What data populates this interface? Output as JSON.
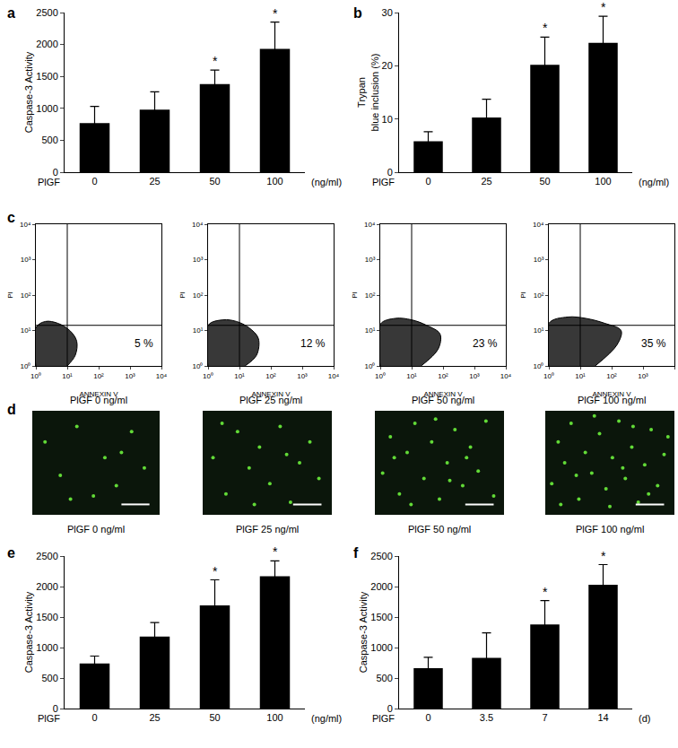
{
  "chart_data": [
    {
      "panel": "a",
      "type": "bar",
      "categories": [
        "0",
        "25",
        "50",
        "100"
      ],
      "values": [
        770,
        980,
        1380,
        1930
      ],
      "errors": [
        260,
        280,
        220,
        420
      ],
      "x_label": "PlGF",
      "x_unit": "(ng/ml)",
      "y_label": "Caspase-3 Activity",
      "ylim": [
        0,
        2500
      ],
      "yticks": [
        0,
        500,
        1000,
        1500,
        2000,
        2500
      ],
      "color": "#000000",
      "grid": false,
      "annotations": [
        {
          "category": "50",
          "text": "*"
        },
        {
          "category": "100",
          "text": "*"
        }
      ]
    },
    {
      "panel": "b",
      "type": "bar",
      "categories": [
        "0",
        "25",
        "50",
        "100"
      ],
      "values": [
        5.8,
        10.3,
        20.2,
        24.3
      ],
      "errors": [
        1.8,
        3.4,
        5.2,
        5.0
      ],
      "x_label": "PlGF",
      "x_unit": "(ng/ml)",
      "y_label": [
        "Trypan",
        "blue inclusion (%)"
      ],
      "ylim": [
        0,
        30
      ],
      "yticks": [
        0,
        10,
        20,
        30
      ],
      "color": "#000000",
      "grid": false,
      "annotations": [
        {
          "category": "50",
          "text": "*"
        },
        {
          "category": "100",
          "text": "*"
        }
      ]
    },
    {
      "panel": "c",
      "type": "scatter",
      "log": true,
      "x_label": "ANNEXIN V",
      "y_label": "PI",
      "xlim": [
        1,
        10000
      ],
      "ylim": [
        1,
        10000
      ],
      "xticks": [
        {
          "value": 1,
          "label": "10⁰"
        },
        {
          "value": 10,
          "label": "10¹"
        },
        {
          "value": 100,
          "label": "10²"
        },
        {
          "value": 1000,
          "label": "10³"
        },
        {
          "value": 10000,
          "label": "10⁴"
        }
      ],
      "yticks": [
        {
          "value": 1,
          "label": "10⁰"
        },
        {
          "value": 10,
          "label": "10¹"
        },
        {
          "value": 100,
          "label": "10²"
        },
        {
          "value": 1000,
          "label": "10³"
        },
        {
          "value": 10000,
          "label": "10⁴"
        }
      ],
      "gates": {
        "x": 10,
        "y": 14
      },
      "quadrant_label": "5 %",
      "caption": "PlGF 0 ng/ml",
      "color": "#000000",
      "cloud": {
        "x": [
          1,
          1,
          2,
          5,
          12,
          20,
          18,
          10
        ],
        "y": [
          1,
          12,
          18,
          16,
          10,
          5,
          2,
          1
        ]
      }
    },
    {
      "type": "scatter",
      "log": true,
      "x_label": "ANNEXIN V",
      "y_label": "PI",
      "xlim": [
        1,
        10000
      ],
      "ylim": [
        1,
        10000
      ],
      "xticks": [
        {
          "value": 1,
          "label": "10⁰"
        },
        {
          "value": 10,
          "label": "10¹"
        },
        {
          "value": 100,
          "label": "10²"
        },
        {
          "value": 1000,
          "label": "10³"
        },
        {
          "value": 10000,
          "label": "10⁴"
        }
      ],
      "yticks": [
        {
          "value": 1,
          "label": "10⁰"
        },
        {
          "value": 10,
          "label": "10¹"
        },
        {
          "value": 100,
          "label": "10²"
        },
        {
          "value": 1000,
          "label": "10³"
        },
        {
          "value": 10000,
          "label": "10⁴"
        }
      ],
      "gates": {
        "x": 10,
        "y": 14
      },
      "quadrant_label": "12 %",
      "caption": "PlGF 25 ng/ml",
      "color": "#000000",
      "cloud": {
        "x": [
          1,
          1,
          3,
          8,
          20,
          40,
          35,
          15
        ],
        "y": [
          1,
          14,
          20,
          18,
          12,
          6,
          2,
          1
        ]
      }
    },
    {
      "type": "scatter",
      "log": true,
      "x_label": "ANNEXIN V",
      "y_label": "PI",
      "xlim": [
        1,
        10000
      ],
      "ylim": [
        1,
        10000
      ],
      "xticks": [
        {
          "value": 1,
          "label": "10⁰"
        },
        {
          "value": 10,
          "label": "10¹"
        },
        {
          "value": 100,
          "label": "10²"
        },
        {
          "value": 1000,
          "label": "10³"
        },
        {
          "value": 10000,
          "label": "10⁴"
        }
      ],
      "yticks": [
        {
          "value": 1,
          "label": "10⁰"
        },
        {
          "value": 10,
          "label": "10¹"
        },
        {
          "value": 100,
          "label": "10²"
        },
        {
          "value": 1000,
          "label": "10³"
        },
        {
          "value": 10000,
          "label": "10⁴"
        }
      ],
      "gates": {
        "x": 10,
        "y": 14
      },
      "quadrant_label": "23 %",
      "caption": "PlGF 50 ng/ml",
      "color": "#000000",
      "cloud": {
        "x": [
          1,
          1,
          3,
          10,
          30,
          80,
          70,
          20
        ],
        "y": [
          1,
          15,
          22,
          20,
          14,
          8,
          3,
          1
        ]
      }
    },
    {
      "type": "scatter",
      "log": true,
      "x_label": "ANNEXIN V",
      "y_label": "PI",
      "xlim": [
        1,
        10000
      ],
      "ylim": [
        1,
        10000
      ],
      "xticks": [
        {
          "value": 1,
          "label": "10⁰"
        },
        {
          "value": 10,
          "label": "10¹"
        },
        {
          "value": 100,
          "label": "10²"
        },
        {
          "value": 1000,
          "label": "10³"
        },
        {
          "value": 10000,
          "label": "10⁴"
        }
      ],
      "yticks": [
        {
          "value": 1,
          "label": "10⁰"
        },
        {
          "value": 10,
          "label": "10¹"
        },
        {
          "value": 100,
          "label": "10²"
        },
        {
          "value": 1000,
          "label": "10³"
        },
        {
          "value": 10000,
          "label": "10⁴"
        }
      ],
      "gates": {
        "x": 10,
        "y": 14
      },
      "quadrant_label": "35 %",
      "caption": "PlGF 100 ng/ml",
      "color": "#000000",
      "cloud": {
        "x": [
          1,
          1,
          4,
          15,
          60,
          200,
          150,
          30
        ],
        "y": [
          1,
          16,
          24,
          22,
          16,
          10,
          4,
          1
        ]
      }
    },
    {
      "panel": "d",
      "type": "image",
      "caption": "PlGF 0 ng/ml",
      "tick_labels": false,
      "xlim": [
        0,
        100
      ],
      "ylim": [
        0,
        100
      ],
      "color": "#6cf03c",
      "spots": {
        "x": [
          10,
          22,
          35,
          48,
          57,
          66,
          78,
          88,
          30,
          70
        ],
        "y": [
          70,
          38,
          85,
          18,
          55,
          28,
          80,
          45,
          15,
          60
        ]
      }
    },
    {
      "type": "image",
      "caption": "PlGF 25 ng/ml",
      "tick_labels": false,
      "xlim": [
        0,
        100
      ],
      "ylim": [
        0,
        100
      ],
      "color": "#6cf03c",
      "spots": {
        "x": [
          8,
          18,
          27,
          36,
          44,
          52,
          60,
          68,
          75,
          83,
          90,
          40,
          15,
          65
        ],
        "y": [
          55,
          20,
          80,
          45,
          65,
          30,
          85,
          12,
          50,
          70,
          35,
          10,
          88,
          58
        ]
      }
    },
    {
      "type": "image",
      "caption": "PlGF 50 ng/ml",
      "tick_labels": false,
      "xlim": [
        0,
        100
      ],
      "ylim": [
        0,
        100
      ],
      "color": "#6cf03c",
      "spots": {
        "x": [
          6,
          12,
          19,
          25,
          31,
          38,
          44,
          50,
          56,
          62,
          68,
          74,
          80,
          86,
          92,
          28,
          47,
          71,
          15,
          58
        ],
        "y": [
          40,
          75,
          20,
          60,
          88,
          35,
          70,
          15,
          50,
          82,
          28,
          65,
          42,
          90,
          18,
          10,
          92,
          55,
          55,
          33
        ]
      }
    },
    {
      "type": "image",
      "caption": "PlGF 100 ng/ml",
      "tick_labels": false,
      "xlim": [
        0,
        100
      ],
      "ylim": [
        0,
        100
      ],
      "color": "#6cf03c",
      "spots": {
        "x": [
          5,
          10,
          15,
          20,
          26,
          31,
          36,
          42,
          47,
          52,
          57,
          62,
          67,
          72,
          77,
          82,
          87,
          92,
          95,
          24,
          50,
          68,
          38,
          80,
          12,
          60
        ],
        "y": [
          30,
          70,
          50,
          88,
          15,
          60,
          40,
          78,
          25,
          55,
          90,
          35,
          65,
          12,
          48,
          82,
          28,
          58,
          75,
          38,
          8,
          85,
          95,
          20,
          10,
          45
        ]
      }
    },
    {
      "panel": "e",
      "type": "bar",
      "categories": [
        "0",
        "25",
        "50",
        "100"
      ],
      "values": [
        740,
        1180,
        1690,
        2170
      ],
      "errors": [
        120,
        230,
        420,
        250
      ],
      "x_label": "PlGF",
      "x_unit": "(ng/ml)",
      "y_label": "Caspase-3 Activity",
      "ylim": [
        0,
        2500
      ],
      "yticks": [
        0,
        500,
        1000,
        1500,
        2000,
        2500
      ],
      "color": "#000000",
      "grid": false,
      "annotations": [
        {
          "category": "50",
          "text": "*"
        },
        {
          "category": "100",
          "text": "*"
        }
      ]
    },
    {
      "panel": "f",
      "type": "bar",
      "categories": [
        "0",
        "3.5",
        "7",
        "14"
      ],
      "values": [
        660,
        830,
        1380,
        2030
      ],
      "errors": [
        180,
        410,
        390,
        330
      ],
      "x_label": "PlGF",
      "x_unit": "(d)",
      "y_label": "Caspase-3 Activity",
      "ylim": [
        0,
        2500
      ],
      "yticks": [
        0,
        500,
        1000,
        1500,
        2000,
        2500
      ],
      "color": "#000000",
      "grid": false,
      "annotations": [
        {
          "category": "7",
          "text": "*"
        },
        {
          "category": "14",
          "text": "*"
        }
      ]
    }
  ]
}
